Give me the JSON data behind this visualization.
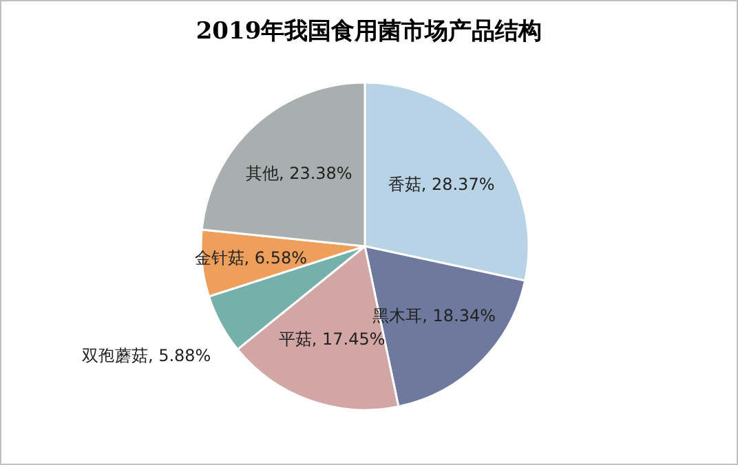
{
  "chart_data": {
    "type": "pie",
    "title": "2019年我国食用菌市场产品结构",
    "categories": [
      "香菇",
      "黑木耳",
      "平菇",
      "双孢蘑菇",
      "金针菇",
      "其他"
    ],
    "values": [
      28.37,
      18.34,
      17.45,
      5.88,
      6.58,
      23.38
    ],
    "colors": [
      "#b8d3e5",
      "#6e799d",
      "#d3a6a6",
      "#76b0aa",
      "#ef9f5c",
      "#a9aeae"
    ],
    "value_labels": [
      "28.37%",
      "18.34%",
      "17.45%",
      "5.88%",
      "6.58%",
      "23.38%"
    ]
  }
}
